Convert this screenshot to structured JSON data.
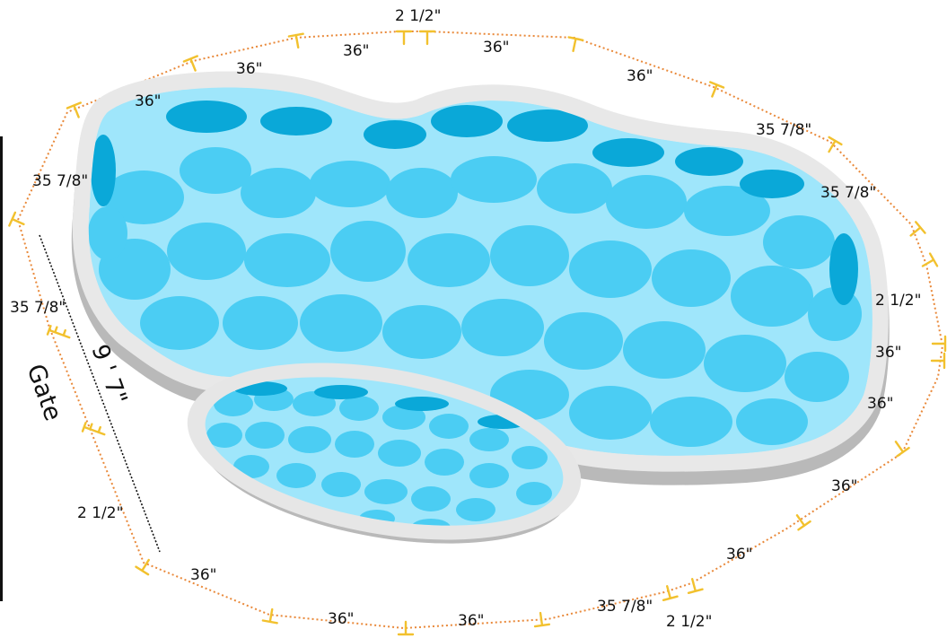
{
  "diagram": {
    "gate_label": "Gate",
    "gate_width": "9 ' 7\"",
    "colors": {
      "fence_line": "#e9893a",
      "post": "#f2c12e",
      "coping": "#e6e6e6",
      "coping_shadow": "#b9b9b9",
      "water": "#4bcdf3",
      "water_deep": "#0aa8d8",
      "water_light": "#9fe6fb",
      "edge_line": "#111111"
    },
    "segment_labels": [
      "2 1/2\"",
      "36\"",
      "36\"",
      "36\"",
      "36\"",
      "36\"",
      "35 7/8\"",
      "35 7/8\"",
      "35 7/8\"",
      "2 1/2\"",
      "35 7/8\"",
      "36\"",
      "36\"",
      "36\"",
      "2 1/2\"",
      "36\"",
      "36\"",
      "35 7/8\"",
      "36\"",
      "36\""
    ]
  }
}
